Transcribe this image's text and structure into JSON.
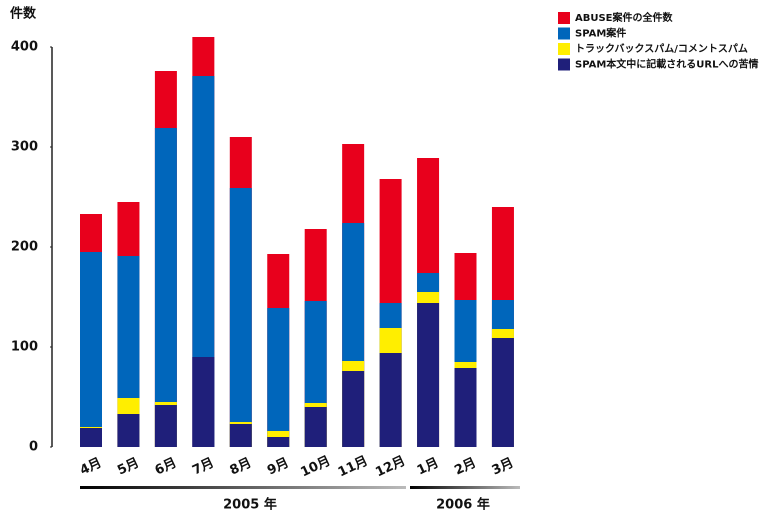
{
  "chart_data": {
    "type": "bar",
    "overlap": true,
    "y_label": "件数",
    "categories": [
      "4月",
      "5月",
      "6月",
      "7月",
      "8月",
      "9月",
      "10月",
      "11月",
      "12月",
      "1月",
      "2月",
      "3月"
    ],
    "series": [
      {
        "name": "ABUSE案件の全件数",
        "color": "#e8001c",
        "values": [
          233,
          245,
          376,
          410,
          310,
          193,
          218,
          303,
          268,
          289,
          194,
          240
        ]
      },
      {
        "name": "SPAM案件",
        "color": "#0066bb",
        "values": [
          195,
          191,
          319,
          371,
          259,
          139,
          146,
          224,
          144,
          174,
          147,
          147
        ]
      },
      {
        "name": "トラックバックスパム/コメントスパム",
        "color": "#ffee00",
        "values": [
          20,
          49,
          45,
          0,
          25,
          16,
          44,
          86,
          119,
          155,
          85,
          118
        ]
      },
      {
        "name": "SPAM本文中に記載されるURLへの苦情",
        "color": "#1f1f7a",
        "values": [
          19,
          33,
          42,
          90,
          23,
          10,
          40,
          76,
          94,
          144,
          79,
          109
        ]
      }
    ],
    "ylim": [
      0,
      400
    ],
    "yticks": [
      0,
      100,
      200,
      300,
      400
    ],
    "grid": false,
    "groups": [
      {
        "label": "2005 年"
      },
      {
        "label": "2006 年"
      }
    ]
  }
}
